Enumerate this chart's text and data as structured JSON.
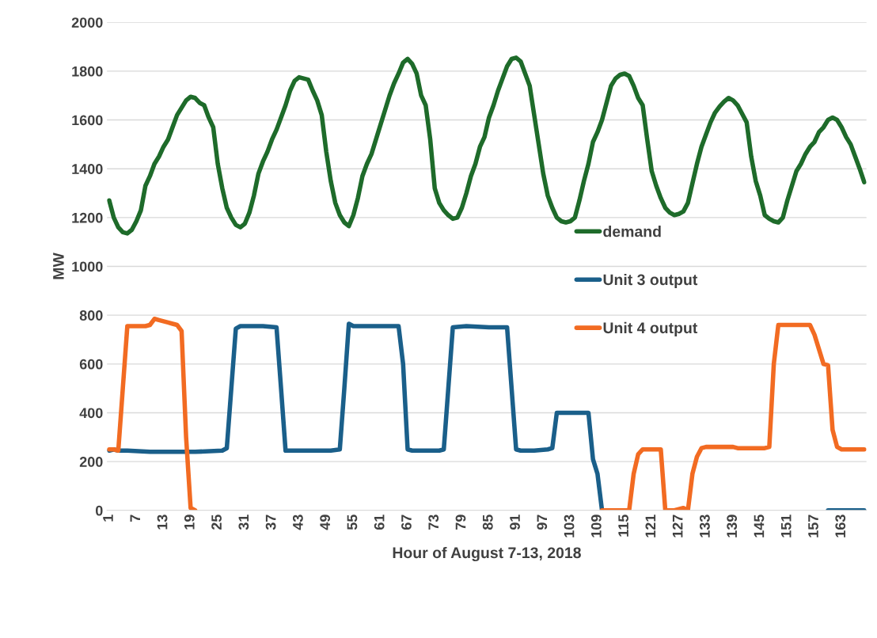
{
  "chart_data": {
    "type": "line",
    "xlabel": "Hour of August 7-13, 2018",
    "ylabel": "MW",
    "xlim": [
      0.5,
      168.5
    ],
    "xticks": [
      1,
      7,
      13,
      19,
      25,
      31,
      37,
      43,
      49,
      55,
      61,
      67,
      73,
      79,
      85,
      91,
      97,
      103,
      109,
      115,
      121,
      127,
      133,
      139,
      145,
      151,
      157,
      163
    ],
    "ylim": [
      0,
      2000
    ],
    "yticks": [
      0,
      200,
      400,
      600,
      800,
      1000,
      1200,
      1400,
      1600,
      1800,
      2000
    ],
    "grid": "y",
    "legend": "right",
    "marker": "none",
    "line_style": "solid",
    "series": [
      {
        "name": "demand",
        "color": "#1e6b2a",
        "x": [
          1,
          2,
          3,
          4,
          5,
          6,
          7,
          8,
          9,
          10,
          11,
          12,
          13,
          14,
          15,
          16,
          17,
          18,
          19,
          20,
          21,
          22,
          23,
          24,
          25,
          26,
          27,
          28,
          29,
          30,
          31,
          32,
          33,
          34,
          35,
          36,
          37,
          38,
          39,
          40,
          41,
          42,
          43,
          44,
          45,
          46,
          47,
          48,
          49,
          50,
          51,
          52,
          53,
          54,
          55,
          56,
          57,
          58,
          59,
          60,
          61,
          62,
          63,
          64,
          65,
          66,
          67,
          68,
          69,
          70,
          71,
          72,
          73,
          74,
          75,
          76,
          77,
          78,
          79,
          80,
          81,
          82,
          83,
          84,
          85,
          86,
          87,
          88,
          89,
          90,
          91,
          92,
          93,
          94,
          95,
          96,
          97,
          98,
          99,
          100,
          101,
          102,
          103,
          104,
          105,
          106,
          107,
          108,
          109,
          110,
          111,
          112,
          113,
          114,
          115,
          116,
          117,
          118,
          119,
          120,
          121,
          122,
          123,
          124,
          125,
          126,
          127,
          128,
          129,
          130,
          131,
          132,
          133,
          134,
          135,
          136,
          137,
          138,
          139,
          140,
          141,
          142,
          143,
          144,
          145,
          146,
          147,
          148,
          149,
          150,
          151,
          152,
          153,
          154,
          155,
          156,
          157,
          158,
          159,
          160,
          161,
          162,
          163,
          164,
          165,
          166,
          167,
          168
        ],
        "values": [
          1270,
          1200,
          1160,
          1140,
          1135,
          1150,
          1185,
          1230,
          1330,
          1370,
          1420,
          1450,
          1490,
          1520,
          1570,
          1620,
          1650,
          1680,
          1695,
          1690,
          1670,
          1660,
          1610,
          1570,
          1420,
          1320,
          1240,
          1200,
          1170,
          1160,
          1175,
          1220,
          1290,
          1380,
          1430,
          1470,
          1520,
          1560,
          1610,
          1660,
          1720,
          1760,
          1775,
          1770,
          1765,
          1720,
          1680,
          1620,
          1470,
          1350,
          1260,
          1210,
          1180,
          1165,
          1210,
          1280,
          1370,
          1420,
          1460,
          1520,
          1580,
          1640,
          1700,
          1750,
          1790,
          1835,
          1850,
          1830,
          1790,
          1700,
          1660,
          1520,
          1320,
          1260,
          1230,
          1210,
          1195,
          1200,
          1240,
          1300,
          1370,
          1420,
          1490,
          1530,
          1610,
          1660,
          1720,
          1770,
          1820,
          1850,
          1855,
          1840,
          1790,
          1740,
          1620,
          1500,
          1380,
          1290,
          1240,
          1200,
          1185,
          1180,
          1185,
          1200,
          1270,
          1350,
          1420,
          1510,
          1550,
          1600,
          1670,
          1740,
          1770,
          1785,
          1790,
          1780,
          1740,
          1690,
          1660,
          1520,
          1390,
          1330,
          1280,
          1240,
          1220,
          1210,
          1215,
          1225,
          1260,
          1340,
          1420,
          1490,
          1540,
          1590,
          1630,
          1655,
          1675,
          1690,
          1680,
          1660,
          1625,
          1590,
          1450,
          1350,
          1290,
          1210,
          1195,
          1185,
          1180,
          1200,
          1270,
          1330,
          1390,
          1420,
          1460,
          1490,
          1510,
          1550,
          1570,
          1600,
          1610,
          1600,
          1570,
          1530,
          1500,
          1450,
          1400,
          1345
        ]
      },
      {
        "name": "Unit 3 output",
        "color": "#1a5f8a",
        "x": [
          1,
          2,
          3,
          5,
          10,
          20,
          26,
          27,
          28,
          29,
          30,
          35,
          38,
          39,
          40,
          45,
          50,
          52,
          53,
          54,
          55,
          60,
          65,
          66,
          67,
          68,
          70,
          74,
          75,
          76,
          77,
          80,
          85,
          89,
          90,
          91,
          92,
          95,
          98,
          99,
          100,
          101,
          105,
          107,
          108,
          109,
          110,
          111,
          160,
          168
        ],
        "values": [
          245,
          250,
          245,
          245,
          240,
          240,
          245,
          255,
          500,
          745,
          755,
          755,
          750,
          500,
          245,
          245,
          245,
          250,
          500,
          765,
          755,
          755,
          755,
          600,
          250,
          245,
          245,
          245,
          250,
          500,
          750,
          755,
          750,
          750,
          500,
          250,
          245,
          245,
          250,
          255,
          400,
          400,
          400,
          400,
          210,
          150,
          0,
          null,
          0,
          0
        ]
      },
      {
        "name": "Unit 4 output",
        "color": "#f26b22",
        "x": [
          1,
          2,
          3,
          4,
          5,
          6,
          7,
          8,
          9,
          10,
          11,
          12,
          13,
          14,
          15,
          16,
          17,
          18,
          19,
          20,
          21,
          110,
          111,
          112,
          113,
          114,
          115,
          116,
          117,
          118,
          119,
          120,
          121,
          122,
          123,
          124,
          125,
          126,
          127,
          128,
          129,
          130,
          131,
          132,
          133,
          134,
          135,
          136,
          137,
          138,
          139,
          140,
          141,
          142,
          143,
          144,
          145,
          146,
          147,
          148,
          149,
          150,
          151,
          152,
          153,
          154,
          155,
          156,
          157,
          158,
          159,
          160,
          161,
          162,
          163,
          164,
          165,
          166,
          167,
          168
        ],
        "values": [
          250,
          250,
          245,
          500,
          755,
          755,
          755,
          755,
          755,
          760,
          785,
          780,
          775,
          770,
          765,
          760,
          735,
          300,
          10,
          0,
          null,
          0,
          0,
          0,
          0,
          0,
          0,
          0,
          150,
          230,
          250,
          250,
          250,
          250,
          250,
          0,
          0,
          0,
          5,
          10,
          0,
          150,
          220,
          255,
          260,
          260,
          260,
          260,
          260,
          260,
          260,
          255,
          255,
          255,
          255,
          255,
          255,
          255,
          260,
          600,
          760,
          760,
          760,
          760,
          760,
          760,
          760,
          760,
          720,
          660,
          600,
          595,
          330,
          260,
          250,
          250,
          250,
          250,
          250,
          250
        ]
      }
    ]
  }
}
